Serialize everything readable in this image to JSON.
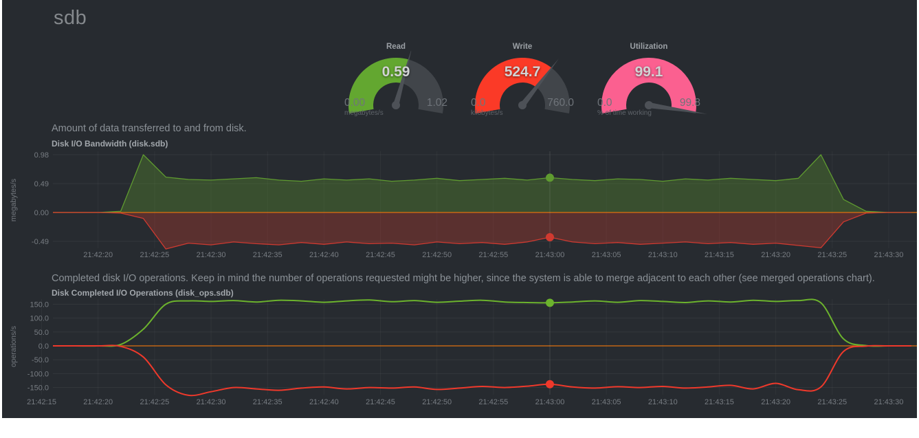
{
  "page": {
    "title": "sdb"
  },
  "gauges": [
    {
      "title": "Read",
      "value": "0.59",
      "min": "0.00",
      "max": "1.02",
      "units": "megabytes/s",
      "color": "#63a730",
      "fraction": 0.578
    },
    {
      "title": "Write",
      "value": "524.7",
      "min": "0.0",
      "max": "760.0",
      "units": "kilobytes/s",
      "color": "#fb3a27",
      "fraction": 0.69
    },
    {
      "title": "Utilization",
      "value": "99.1",
      "min": "0.0",
      "max": "99.8",
      "units": "% of time working",
      "color": "#fb6090",
      "fraction": 0.993
    }
  ],
  "colors": {
    "background": "#272b30",
    "zero_line": "#e0710f",
    "grid": "rgba(255,255,255,0.06)",
    "gauge_track": "#41454a",
    "gauge_needle": "#4d5157"
  },
  "chart_data": [
    {
      "type": "area",
      "description": "Amount of data transferred to and from disk.",
      "title": "Disk I/O Bandwidth (disk.sdb)",
      "ylabel": "megabytes/s",
      "ylim": [
        -0.61,
        1.04
      ],
      "grid": true,
      "yticks": [
        {
          "v": 0.98,
          "label": "0.98"
        },
        {
          "v": 0.49,
          "label": "0.49"
        },
        {
          "v": 0,
          "label": "0.00"
        },
        {
          "v": -0.49,
          "label": "-0.49"
        }
      ],
      "xticks": [
        {
          "t": 140,
          "label": "21:42:20"
        },
        {
          "t": 145,
          "label": "21:42:25"
        },
        {
          "t": 150,
          "label": "21:42:30"
        },
        {
          "t": 155,
          "label": "21:42:35"
        },
        {
          "t": 160,
          "label": "21:42:40"
        },
        {
          "t": 165,
          "label": "21:42:45"
        },
        {
          "t": 170,
          "label": "21:42:50"
        },
        {
          "t": 175,
          "label": "21:42:55"
        },
        {
          "t": 180,
          "label": "21:43:00"
        },
        {
          "t": 185,
          "label": "21:43:05"
        },
        {
          "t": 190,
          "label": "21:43:10"
        },
        {
          "t": 195,
          "label": "21:43:15"
        },
        {
          "t": 200,
          "label": "21:43:20"
        },
        {
          "t": 205,
          "label": "21:43:25"
        },
        {
          "t": 210,
          "label": "21:43:30"
        }
      ],
      "x": [
        136,
        138,
        140,
        142,
        144,
        146,
        148,
        150,
        152,
        154,
        156,
        158,
        160,
        162,
        164,
        166,
        168,
        170,
        172,
        174,
        176,
        178,
        180,
        182,
        184,
        186,
        188,
        190,
        192,
        194,
        196,
        198,
        200,
        202,
        204,
        206,
        208,
        210,
        212
      ],
      "series": [
        {
          "name": "reads",
          "color": "#5f9b30",
          "fill": "rgba(95,155,48,0.32)",
          "values": [
            0,
            0,
            0,
            0.02,
            0.98,
            0.6,
            0.56,
            0.55,
            0.57,
            0.59,
            0.55,
            0.53,
            0.57,
            0.55,
            0.57,
            0.53,
            0.55,
            0.58,
            0.54,
            0.56,
            0.58,
            0.55,
            0.59,
            0.56,
            0.54,
            0.57,
            0.56,
            0.53,
            0.57,
            0.55,
            0.58,
            0.56,
            0.54,
            0.58,
            0.98,
            0.22,
            0.02,
            0,
            0
          ]
        },
        {
          "name": "writes",
          "color": "#cf3a30",
          "fill": "rgba(207,58,48,0.30)",
          "values": [
            0,
            0,
            0,
            -0.01,
            -0.1,
            -0.62,
            -0.52,
            -0.55,
            -0.5,
            -0.53,
            -0.55,
            -0.51,
            -0.54,
            -0.5,
            -0.53,
            -0.52,
            -0.55,
            -0.5,
            -0.53,
            -0.51,
            -0.54,
            -0.5,
            -0.42,
            -0.5,
            -0.53,
            -0.51,
            -0.54,
            -0.52,
            -0.5,
            -0.53,
            -0.51,
            -0.54,
            -0.52,
            -0.56,
            -0.6,
            -0.16,
            -0.01,
            0,
            0
          ]
        }
      ],
      "hover": {
        "t": 180,
        "time_label": "21:43:00",
        "values": [
          0.59,
          -0.42
        ]
      }
    },
    {
      "type": "line",
      "description": "Completed disk I/O operations. Keep in mind the number of operations requested might be higher, since the system is able to merge adjacent to each other (see merged operations chart).",
      "title": "Disk Completed I/O Operations (disk_ops.sdb)",
      "ylabel": "operations/s",
      "ylim": [
        -176,
        176
      ],
      "grid": true,
      "yticks": [
        {
          "v": 150,
          "label": "150.0"
        },
        {
          "v": 100,
          "label": "100.0"
        },
        {
          "v": 50,
          "label": "50.0"
        },
        {
          "v": 0,
          "label": "0.0"
        },
        {
          "v": -50,
          "label": "-50.0"
        },
        {
          "v": -100,
          "label": "-100.0"
        },
        {
          "v": -150,
          "label": "-150.0"
        }
      ],
      "xticks": [
        {
          "t": 135,
          "label": "21:42:15"
        },
        {
          "t": 140,
          "label": "21:42:20"
        },
        {
          "t": 145,
          "label": "21:42:25"
        },
        {
          "t": 150,
          "label": "21:42:30"
        },
        {
          "t": 155,
          "label": "21:42:35"
        },
        {
          "t": 160,
          "label": "21:42:40"
        },
        {
          "t": 165,
          "label": "21:42:45"
        },
        {
          "t": 170,
          "label": "21:42:50"
        },
        {
          "t": 175,
          "label": "21:42:55"
        },
        {
          "t": 180,
          "label": "21:43:00"
        },
        {
          "t": 185,
          "label": "21:43:05"
        },
        {
          "t": 190,
          "label": "21:43:10"
        },
        {
          "t": 195,
          "label": "21:43:15"
        },
        {
          "t": 200,
          "label": "21:43:20"
        },
        {
          "t": 205,
          "label": "21:43:25"
        },
        {
          "t": 210,
          "label": "21:43:30"
        }
      ],
      "x": [
        136,
        138,
        140,
        142,
        144,
        146,
        148,
        150,
        152,
        154,
        156,
        158,
        160,
        162,
        164,
        166,
        168,
        170,
        172,
        174,
        176,
        178,
        180,
        182,
        184,
        186,
        188,
        190,
        192,
        194,
        196,
        198,
        200,
        202,
        204,
        206,
        208,
        210,
        212
      ],
      "series": [
        {
          "name": "reads",
          "color": "#6cb32d",
          "values": [
            0,
            0,
            0,
            5,
            60,
            150,
            162,
            160,
            163,
            158,
            164,
            162,
            157,
            162,
            165,
            159,
            163,
            157,
            161,
            164,
            158,
            156,
            155,
            158,
            162,
            157,
            163,
            160,
            156,
            162,
            158,
            164,
            160,
            163,
            155,
            25,
            1,
            0,
            0
          ]
        },
        {
          "name": "writes",
          "color": "#ef392b",
          "values": [
            0,
            0,
            0,
            -2,
            -40,
            -140,
            -178,
            -165,
            -150,
            -155,
            -160,
            -152,
            -148,
            -155,
            -150,
            -152,
            -148,
            -157,
            -152,
            -146,
            -150,
            -145,
            -138,
            -148,
            -152,
            -147,
            -150,
            -146,
            -152,
            -148,
            -142,
            -155,
            -135,
            -158,
            -148,
            -20,
            -1,
            0,
            0
          ]
        }
      ],
      "hover": {
        "t": 180,
        "time_label": "21:43:00",
        "values": [
          155,
          -138
        ]
      }
    }
  ]
}
